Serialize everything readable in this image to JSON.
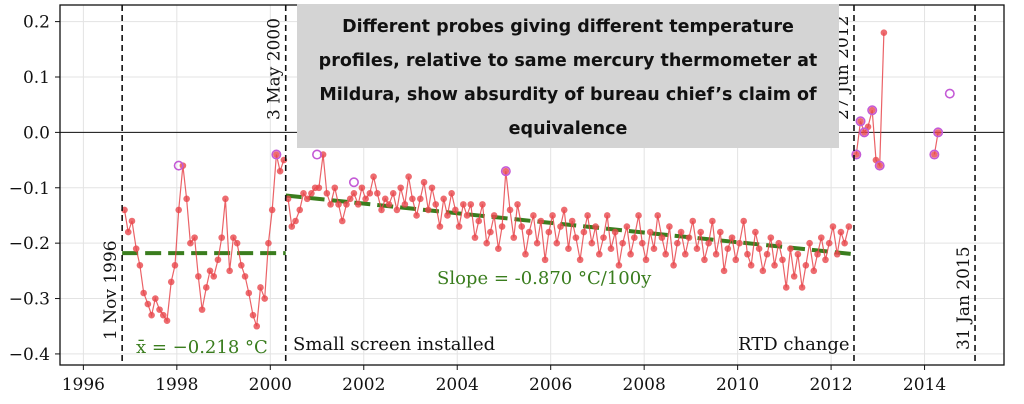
{
  "chart_data": {
    "type": "line",
    "title": "Different probes giving different temperature profiles, relative to same mercury thermometer at Mildura, show absurdity of bureau chief’s claim of equivalence",
    "xlim": [
      1995.5,
      2015.7
    ],
    "ylim": [
      -0.42,
      0.23
    ],
    "x_ticks": [
      1996,
      1998,
      2000,
      2002,
      2004,
      2006,
      2008,
      2010,
      2012,
      2014
    ],
    "x_tick_labels": [
      "1996",
      "1998",
      "2000",
      "2002",
      "2004",
      "2006",
      "2008",
      "2010",
      "2012",
      "2014"
    ],
    "y_ticks": [
      -0.4,
      -0.3,
      -0.2,
      -0.1,
      0.0,
      0.1,
      0.2
    ],
    "y_tick_labels": [
      "−0.4",
      "−0.3",
      "−0.2",
      "−0.1",
      "0.0",
      "0.1",
      "0.2"
    ],
    "grid": true,
    "vertical_lines": [
      {
        "x": 1996.83,
        "label": "1 Nov 1996"
      },
      {
        "x": 2000.33,
        "label": "3 May 2000"
      },
      {
        "x": 2012.49,
        "label": "27 Jun 2012"
      },
      {
        "x": 2015.08,
        "label": "31 Jan 2015"
      }
    ],
    "annotations": {
      "mean": "x̄ = −0.218 °C",
      "slope": "Slope = -0.870 °C/100y",
      "screen": "Small screen installed",
      "rtd": "RTD change"
    },
    "fits": [
      {
        "x": [
          1996.83,
          2000.33
        ],
        "y": [
          -0.218,
          -0.218
        ],
        "color": "#3a7d1e"
      },
      {
        "x": [
          2000.33,
          2012.49
        ],
        "y": [
          -0.114,
          -0.22
        ],
        "color": "#3a7d1e"
      }
    ],
    "series": [
      {
        "color": "#e8474c",
        "x": [
          1996.88,
          1996.96,
          1997.04,
          1997.13,
          1997.21,
          1997.29,
          1997.38,
          1997.46,
          1997.54,
          1997.63,
          1997.71,
          1997.79,
          1997.88,
          1997.96,
          1998.04,
          1998.13,
          1998.21,
          1998.29,
          1998.38,
          1998.46,
          1998.54,
          1998.63,
          1998.71,
          1998.79,
          1998.88,
          1998.96,
          1999.04,
          1999.13,
          1999.21,
          1999.29,
          1999.38,
          1999.46,
          1999.54,
          1999.63,
          1999.71,
          1999.79,
          1999.88,
          1999.96,
          2000.04,
          2000.13,
          2000.21,
          2000.29
        ],
        "y": [
          -0.14,
          -0.18,
          -0.16,
          -0.21,
          -0.24,
          -0.29,
          -0.31,
          -0.33,
          -0.3,
          -0.32,
          -0.33,
          -0.34,
          -0.27,
          -0.24,
          -0.14,
          -0.06,
          -0.12,
          -0.2,
          -0.19,
          -0.26,
          -0.32,
          -0.28,
          -0.25,
          -0.26,
          -0.23,
          -0.19,
          -0.12,
          -0.25,
          -0.19,
          -0.2,
          -0.24,
          -0.26,
          -0.29,
          -0.33,
          -0.35,
          -0.28,
          -0.3,
          -0.2,
          -0.14,
          -0.04,
          -0.07,
          -0.05
        ]
      },
      {
        "color": "#e8474c",
        "x": [
          2000.38,
          2000.46,
          2000.54,
          2000.63,
          2000.71,
          2000.79,
          2000.88,
          2000.96,
          2001.04,
          2001.13,
          2001.21,
          2001.29,
          2001.38,
          2001.46,
          2001.54,
          2001.63,
          2001.71,
          2001.79,
          2001.88,
          2001.96,
          2002.04,
          2002.13,
          2002.21,
          2002.29,
          2002.38,
          2002.46,
          2002.54,
          2002.63,
          2002.71,
          2002.79,
          2002.88,
          2002.96,
          2003.04,
          2003.13,
          2003.21,
          2003.29,
          2003.38,
          2003.46,
          2003.54,
          2003.63,
          2003.71,
          2003.79,
          2003.88,
          2003.96,
          2004.04,
          2004.13,
          2004.21,
          2004.29,
          2004.38,
          2004.46,
          2004.54,
          2004.63,
          2004.71,
          2004.79,
          2004.88,
          2004.96,
          2005.04,
          2005.13,
          2005.21,
          2005.29,
          2005.38,
          2005.46,
          2005.54,
          2005.63,
          2005.71,
          2005.79,
          2005.88,
          2005.96,
          2006.04,
          2006.13,
          2006.21,
          2006.29,
          2006.38,
          2006.46,
          2006.54,
          2006.63,
          2006.71,
          2006.79,
          2006.88,
          2006.96,
          2007.04,
          2007.13,
          2007.21,
          2007.29,
          2007.38,
          2007.46,
          2007.54,
          2007.63,
          2007.71,
          2007.79,
          2007.88,
          2007.96,
          2008.04,
          2008.13,
          2008.21,
          2008.29,
          2008.38,
          2008.46,
          2008.54,
          2008.63,
          2008.71,
          2008.79,
          2008.88,
          2008.96,
          2009.04,
          2009.13,
          2009.21,
          2009.29,
          2009.38,
          2009.46,
          2009.54,
          2009.63,
          2009.71,
          2009.79,
          2009.88,
          2009.96,
          2010.04,
          2010.13,
          2010.21,
          2010.29,
          2010.38,
          2010.46,
          2010.54,
          2010.63,
          2010.71,
          2010.79,
          2010.88,
          2010.96,
          2011.04,
          2011.13,
          2011.21,
          2011.29,
          2011.38,
          2011.46,
          2011.54,
          2011.63,
          2011.71,
          2011.79,
          2011.88,
          2011.96,
          2012.04,
          2012.13,
          2012.21,
          2012.29,
          2012.38
        ],
        "y": [
          -0.12,
          -0.17,
          -0.16,
          -0.14,
          -0.11,
          -0.12,
          -0.11,
          -0.1,
          -0.1,
          -0.04,
          -0.11,
          -0.13,
          -0.1,
          -0.13,
          -0.16,
          -0.13,
          -0.12,
          -0.11,
          -0.13,
          -0.1,
          -0.12,
          -0.11,
          -0.08,
          -0.11,
          -0.14,
          -0.12,
          -0.13,
          -0.11,
          -0.14,
          -0.1,
          -0.13,
          -0.08,
          -0.12,
          -0.15,
          -0.12,
          -0.09,
          -0.14,
          -0.1,
          -0.13,
          -0.17,
          -0.12,
          -0.15,
          -0.11,
          -0.14,
          -0.17,
          -0.13,
          -0.15,
          -0.13,
          -0.19,
          -0.16,
          -0.13,
          -0.2,
          -0.18,
          -0.15,
          -0.21,
          -0.17,
          -0.07,
          -0.14,
          -0.19,
          -0.13,
          -0.17,
          -0.22,
          -0.18,
          -0.15,
          -0.2,
          -0.16,
          -0.23,
          -0.18,
          -0.15,
          -0.2,
          -0.17,
          -0.14,
          -0.21,
          -0.16,
          -0.19,
          -0.23,
          -0.18,
          -0.15,
          -0.2,
          -0.17,
          -0.22,
          -0.19,
          -0.15,
          -0.21,
          -0.18,
          -0.24,
          -0.2,
          -0.17,
          -0.22,
          -0.19,
          -0.15,
          -0.2,
          -0.23,
          -0.18,
          -0.21,
          -0.15,
          -0.19,
          -0.22,
          -0.17,
          -0.24,
          -0.2,
          -0.18,
          -0.22,
          -0.19,
          -0.16,
          -0.21,
          -0.18,
          -0.23,
          -0.2,
          -0.16,
          -0.22,
          -0.18,
          -0.25,
          -0.21,
          -0.19,
          -0.23,
          -0.2,
          -0.16,
          -0.22,
          -0.24,
          -0.18,
          -0.21,
          -0.25,
          -0.22,
          -0.19,
          -0.24,
          -0.2,
          -0.23,
          -0.28,
          -0.21,
          -0.26,
          -0.22,
          -0.28,
          -0.24,
          -0.2,
          -0.25,
          -0.22,
          -0.19,
          -0.23,
          -0.2,
          -0.17,
          -0.22,
          -0.18,
          -0.2,
          -0.17
        ]
      },
      {
        "color": "#e8474c",
        "x": [
          2012.54,
          2012.63,
          2012.71,
          2012.79,
          2012.88,
          2012.96,
          2013.04,
          2013.13
        ],
        "y": [
          -0.04,
          0.02,
          0.0,
          0.01,
          0.04,
          -0.05,
          -0.06,
          0.18
        ]
      },
      {
        "color": "#e8474c",
        "x": [
          2014.21,
          2014.29
        ],
        "y": [
          -0.04,
          0.0
        ]
      },
      {
        "color": "#c45ad6",
        "outline": true,
        "x": [
          1998.04,
          2000.13,
          2001.0,
          2001.79,
          2005.04,
          2012.54,
          2012.63,
          2012.71,
          2012.88,
          2013.04,
          2014.21,
          2014.29,
          2014.54
        ],
        "y": [
          -0.06,
          -0.04,
          -0.04,
          -0.09,
          -0.07,
          -0.04,
          0.02,
          0.0,
          0.04,
          -0.06,
          -0.04,
          0.0,
          0.07
        ]
      }
    ]
  }
}
